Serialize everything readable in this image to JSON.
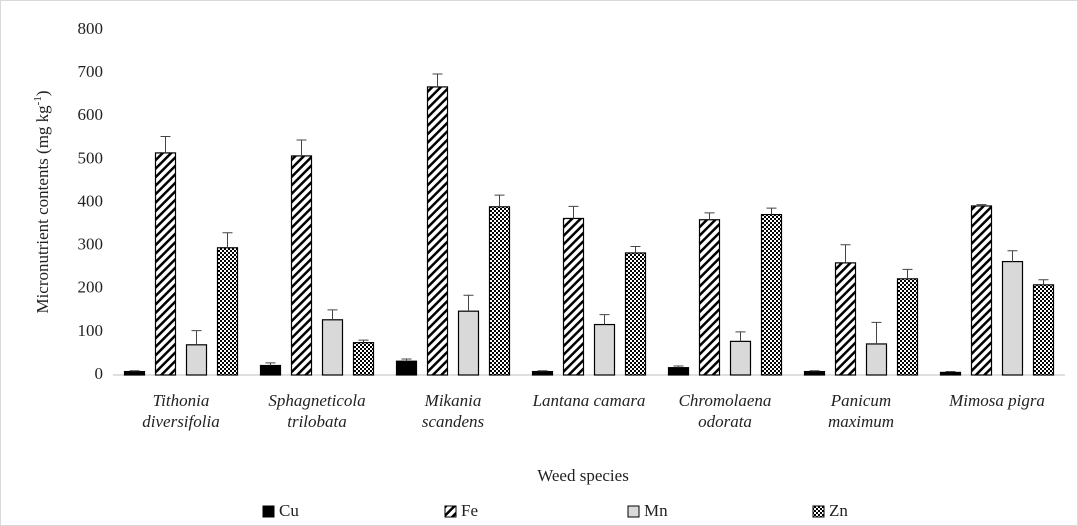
{
  "chart_data": {
    "type": "bar",
    "y_label": "Micronutrient  contents (mg kg",
    "y_label_sup": "-1",
    "y_label_end": ")",
    "x_label": "Weed species",
    "categories": [
      "Tithonia diversifolia",
      "Sphagneticola trilobata",
      "Mikania scandens",
      "Lantana camara",
      "Chromolaena odorata",
      "Panicum maximum",
      "Mimosa pigra"
    ],
    "series": [
      {
        "name": "Cu",
        "color": "#000000",
        "pattern": "solid",
        "values": [
          8,
          22,
          32,
          8,
          17,
          8,
          6
        ],
        "errors": [
          2,
          6,
          5,
          2,
          4,
          2,
          2
        ]
      },
      {
        "name": "Fe",
        "color": "#000000",
        "pattern": "diagonal",
        "values": [
          515,
          508,
          668,
          363,
          360,
          260,
          392
        ],
        "errors": [
          38,
          37,
          30,
          28,
          16,
          42,
          3
        ]
      },
      {
        "name": "Mn",
        "color": "#d9d9d9",
        "pattern": "solid",
        "values": [
          70,
          128,
          148,
          117,
          78,
          72,
          263
        ],
        "errors": [
          33,
          23,
          37,
          23,
          22,
          50,
          25
        ]
      },
      {
        "name": "Zn",
        "color": "#000000",
        "pattern": "checker",
        "values": [
          295,
          75,
          390,
          283,
          372,
          223,
          209
        ],
        "errors": [
          35,
          6,
          27,
          15,
          15,
          22,
          12
        ]
      }
    ],
    "ylim": [
      0,
      800
    ],
    "yticks": [
      0,
      100,
      200,
      300,
      400,
      500,
      600,
      700,
      800
    ],
    "grid": false
  }
}
